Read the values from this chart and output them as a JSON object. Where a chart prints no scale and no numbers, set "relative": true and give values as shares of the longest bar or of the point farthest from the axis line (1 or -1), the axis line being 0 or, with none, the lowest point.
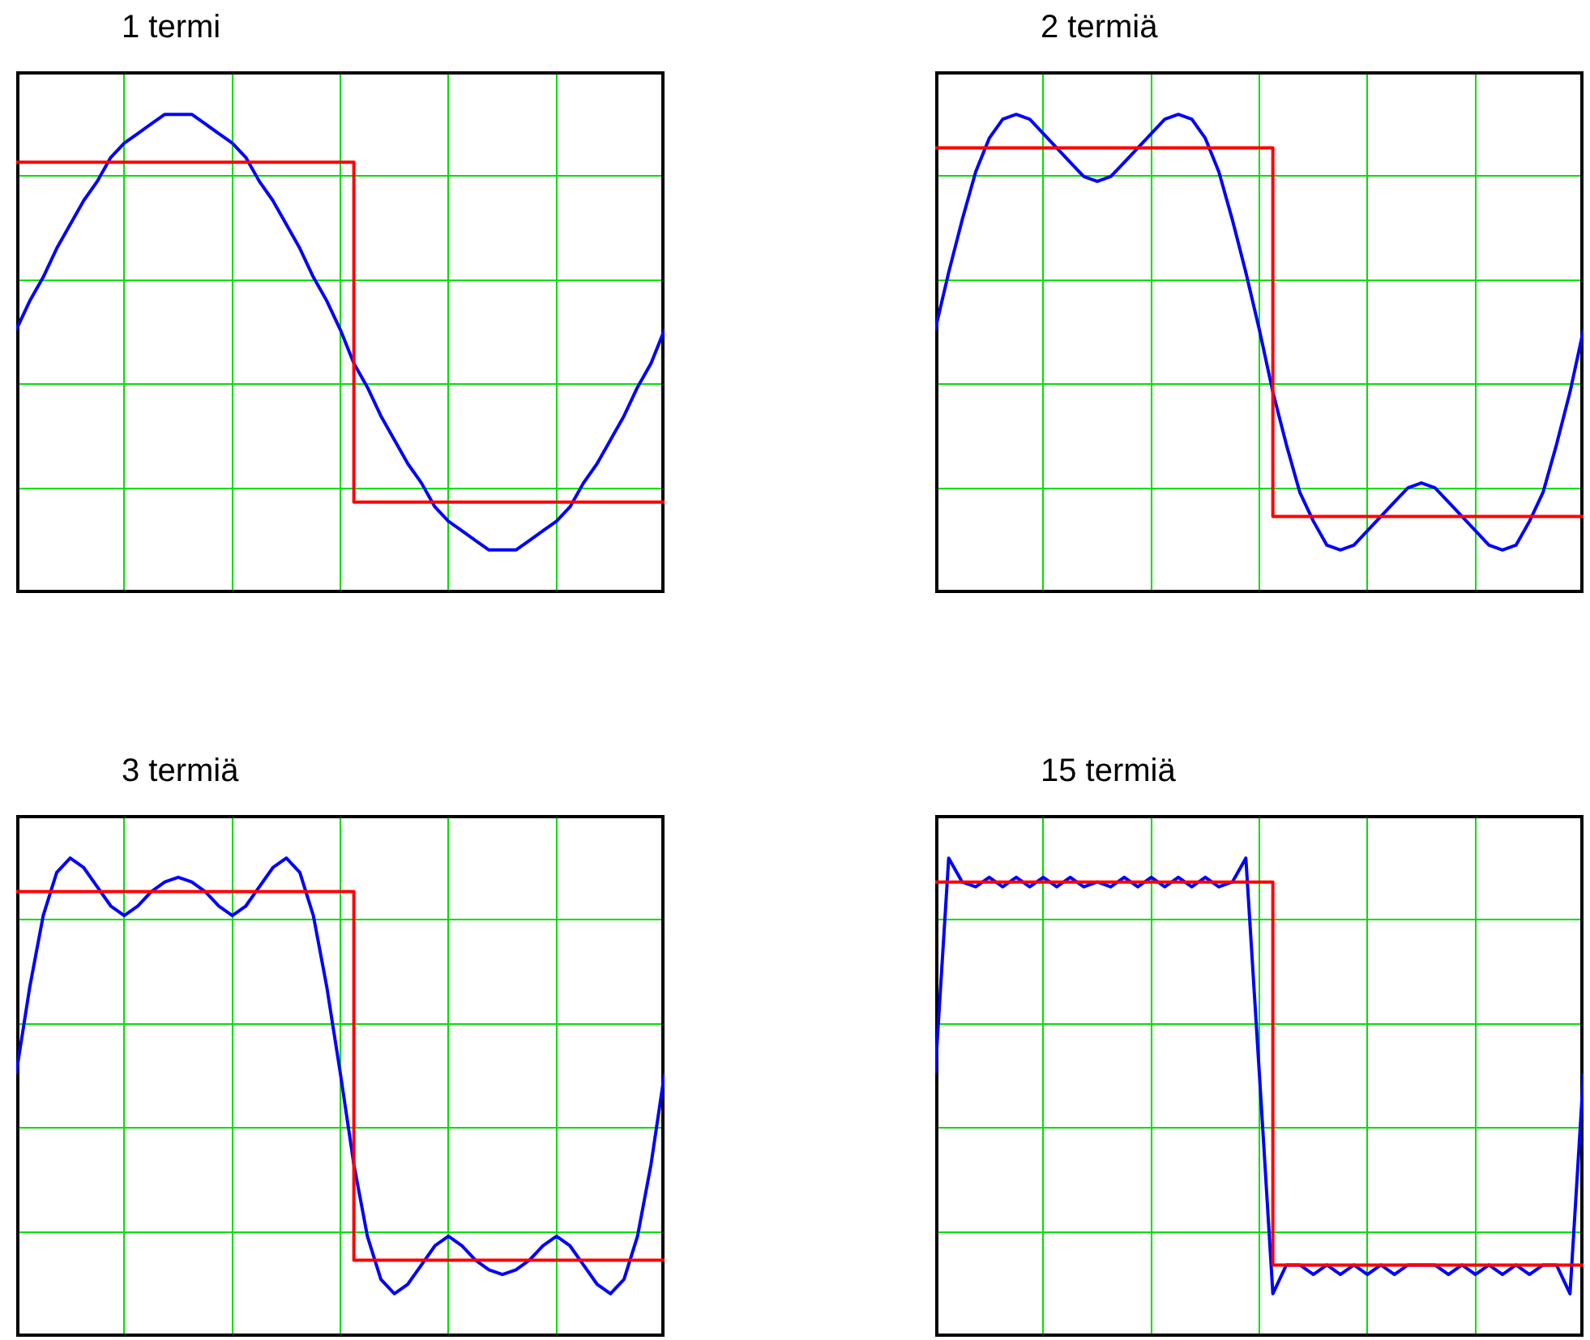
{
  "chart_data": [
    {
      "type": "line",
      "title": "1 termi",
      "relative": true,
      "grid": true,
      "legend": false,
      "tick_labels": false,
      "marker": "none",
      "categories": [
        null,
        null,
        null,
        null,
        null,
        null,
        null,
        null,
        null,
        null,
        null,
        null,
        null,
        null,
        null,
        null,
        null,
        null,
        null,
        null,
        null,
        null,
        null,
        null,
        null,
        null,
        null,
        null,
        null,
        null,
        null,
        null,
        null,
        null,
        null,
        null,
        null,
        null,
        null,
        null,
        null,
        null,
        null,
        null,
        null,
        null,
        null,
        null,
        null
      ],
      "series": [
        {
          "type": "step",
          "color": "#ff0000",
          "values": [
            0.9,
            0.9,
            0.9,
            0.9,
            0.9,
            0.9,
            0.9,
            0.9,
            0.9,
            0.9,
            0.9,
            0.9,
            0.9,
            0.9,
            0.9,
            0.9,
            0.9,
            0.9,
            0.9,
            0.9,
            0.9,
            0.9,
            0.9,
            0.9,
            0.9,
            0.19,
            0.19,
            0.19,
            0.19,
            0.19,
            0.19,
            0.19,
            0.19,
            0.19,
            0.19,
            0.19,
            0.19,
            0.19,
            0.19,
            0.19,
            0.19,
            0.19,
            0.19,
            0.19,
            0.19,
            0.19,
            0.19,
            0.19,
            0.19
          ]
        },
        {
          "type": "line",
          "color": "#0000ff",
          "values": [
            0.55,
            0.61,
            0.66,
            0.72,
            0.77,
            0.82,
            0.86,
            0.91,
            0.94,
            0.96,
            0.98,
            1,
            1,
            1,
            0.98,
            0.96,
            0.94,
            0.91,
            0.86,
            0.82,
            0.77,
            0.72,
            0.66,
            0.61,
            0.55,
            0.48,
            0.43,
            0.37,
            0.32,
            0.27,
            0.23,
            0.18,
            0.15,
            0.13,
            0.11,
            0.09,
            0.09,
            0.09,
            0.11,
            0.13,
            0.15,
            0.18,
            0.23,
            0.27,
            0.32,
            0.37,
            0.43,
            0.48,
            0.55
          ]
        }
      ]
    },
    {
      "type": "line",
      "title": "2 termiä",
      "relative": true,
      "grid": true,
      "legend": false,
      "tick_labels": false,
      "marker": "none",
      "categories": [
        null,
        null,
        null,
        null,
        null,
        null,
        null,
        null,
        null,
        null,
        null,
        null,
        null,
        null,
        null,
        null,
        null,
        null,
        null,
        null,
        null,
        null,
        null,
        null,
        null,
        null,
        null,
        null,
        null,
        null,
        null,
        null,
        null,
        null,
        null,
        null,
        null,
        null,
        null,
        null,
        null,
        null,
        null,
        null,
        null,
        null,
        null,
        null,
        null
      ],
      "series": [
        {
          "type": "step",
          "color": "#ff0000",
          "values": [
            0.93,
            0.93,
            0.93,
            0.93,
            0.93,
            0.93,
            0.93,
            0.93,
            0.93,
            0.93,
            0.93,
            0.93,
            0.93,
            0.93,
            0.93,
            0.93,
            0.93,
            0.93,
            0.93,
            0.93,
            0.93,
            0.93,
            0.93,
            0.93,
            0.93,
            0.16,
            0.16,
            0.16,
            0.16,
            0.16,
            0.16,
            0.16,
            0.16,
            0.16,
            0.16,
            0.16,
            0.16,
            0.16,
            0.16,
            0.16,
            0.16,
            0.16,
            0.16,
            0.16,
            0.16,
            0.16,
            0.16,
            0.16,
            0.16
          ]
        },
        {
          "type": "line",
          "color": "#0000ff",
          "values": [
            0.55,
            0.67,
            0.78,
            0.88,
            0.95,
            0.99,
            1,
            0.99,
            0.96,
            0.93,
            0.9,
            0.87,
            0.86,
            0.87,
            0.9,
            0.93,
            0.96,
            0.99,
            1,
            0.99,
            0.95,
            0.88,
            0.78,
            0.67,
            0.55,
            0.42,
            0.31,
            0.21,
            0.15,
            0.1,
            0.09,
            0.1,
            0.13,
            0.16,
            0.19,
            0.22,
            0.23,
            0.22,
            0.19,
            0.16,
            0.13,
            0.1,
            0.09,
            0.1,
            0.15,
            0.21,
            0.31,
            0.42,
            0.55
          ]
        }
      ]
    },
    {
      "type": "line",
      "title": "3 termiä",
      "relative": true,
      "grid": true,
      "legend": false,
      "tick_labels": false,
      "marker": "none",
      "categories": [
        null,
        null,
        null,
        null,
        null,
        null,
        null,
        null,
        null,
        null,
        null,
        null,
        null,
        null,
        null,
        null,
        null,
        null,
        null,
        null,
        null,
        null,
        null,
        null,
        null,
        null,
        null,
        null,
        null,
        null,
        null,
        null,
        null,
        null,
        null,
        null,
        null,
        null,
        null,
        null,
        null,
        null,
        null,
        null,
        null,
        null,
        null,
        null,
        null
      ],
      "series": [
        {
          "type": "step",
          "color": "#ff0000",
          "values": [
            0.93,
            0.93,
            0.93,
            0.93,
            0.93,
            0.93,
            0.93,
            0.93,
            0.93,
            0.93,
            0.93,
            0.93,
            0.93,
            0.93,
            0.93,
            0.93,
            0.93,
            0.93,
            0.93,
            0.93,
            0.93,
            0.93,
            0.93,
            0.93,
            0.93,
            0.16,
            0.16,
            0.16,
            0.16,
            0.16,
            0.16,
            0.16,
            0.16,
            0.16,
            0.16,
            0.16,
            0.16,
            0.16,
            0.16,
            0.16,
            0.16,
            0.16,
            0.16,
            0.16,
            0.16,
            0.16,
            0.16,
            0.16,
            0.16
          ]
        },
        {
          "type": "line",
          "color": "#0000ff",
          "values": [
            0.55,
            0.73,
            0.88,
            0.97,
            1,
            0.98,
            0.94,
            0.9,
            0.88,
            0.9,
            0.93,
            0.95,
            0.96,
            0.95,
            0.93,
            0.9,
            0.88,
            0.9,
            0.94,
            0.98,
            1,
            0.97,
            0.88,
            0.73,
            0.55,
            0.36,
            0.21,
            0.12,
            0.09,
            0.11,
            0.15,
            0.19,
            0.21,
            0.19,
            0.16,
            0.14,
            0.13,
            0.14,
            0.16,
            0.19,
            0.21,
            0.19,
            0.15,
            0.11,
            0.09,
            0.12,
            0.21,
            0.36,
            0.55
          ]
        }
      ]
    },
    {
      "type": "line",
      "title": "15 termiä",
      "relative": true,
      "grid": true,
      "legend": false,
      "tick_labels": false,
      "marker": "none",
      "categories": [
        null,
        null,
        null,
        null,
        null,
        null,
        null,
        null,
        null,
        null,
        null,
        null,
        null,
        null,
        null,
        null,
        null,
        null,
        null,
        null,
        null,
        null,
        null,
        null,
        null,
        null,
        null,
        null,
        null,
        null,
        null,
        null,
        null,
        null,
        null,
        null,
        null,
        null,
        null,
        null,
        null,
        null,
        null,
        null,
        null,
        null,
        null,
        null,
        null
      ],
      "series": [
        {
          "type": "step",
          "color": "#ff0000",
          "values": [
            0.95,
            0.95,
            0.95,
            0.95,
            0.95,
            0.95,
            0.95,
            0.95,
            0.95,
            0.95,
            0.95,
            0.95,
            0.95,
            0.95,
            0.95,
            0.95,
            0.95,
            0.95,
            0.95,
            0.95,
            0.95,
            0.95,
            0.95,
            0.95,
            0.95,
            0.15,
            0.15,
            0.15,
            0.15,
            0.15,
            0.15,
            0.15,
            0.15,
            0.15,
            0.15,
            0.15,
            0.15,
            0.15,
            0.15,
            0.15,
            0.15,
            0.15,
            0.15,
            0.15,
            0.15,
            0.15,
            0.15,
            0.15,
            0.15
          ]
        },
        {
          "type": "line",
          "color": "#0000ff",
          "values": [
            0.55,
            1,
            0.95,
            0.94,
            0.96,
            0.94,
            0.96,
            0.94,
            0.96,
            0.94,
            0.96,
            0.94,
            0.95,
            0.94,
            0.96,
            0.94,
            0.96,
            0.94,
            0.96,
            0.94,
            0.96,
            0.94,
            0.95,
            1,
            0.55,
            0.09,
            0.15,
            0.15,
            0.13,
            0.15,
            0.13,
            0.15,
            0.13,
            0.15,
            0.13,
            0.15,
            0.15,
            0.15,
            0.13,
            0.15,
            0.13,
            0.15,
            0.13,
            0.15,
            0.13,
            0.15,
            0.15,
            0.09,
            0.55
          ]
        }
      ]
    }
  ]
}
